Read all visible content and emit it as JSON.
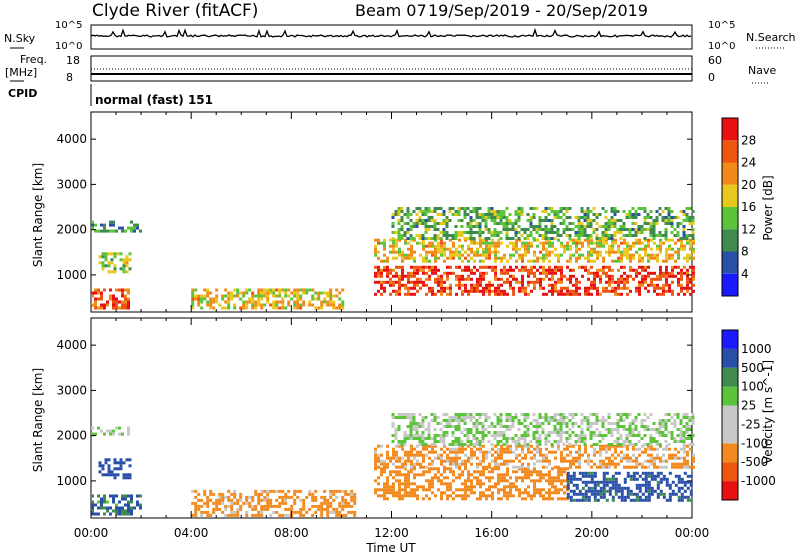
{
  "header": {
    "station": "Clyde River (fitACF)",
    "beam": "Beam 07",
    "dates": "19/Sep/2019 - 20/Sep/2019"
  },
  "tracks": {
    "nsky_label": "N.Sky",
    "nsky_ticks": [
      "10^5",
      "10^0"
    ],
    "nsearch_label": "N.Search",
    "nsearch_ticks": [
      "10^5",
      "10^0"
    ],
    "freq_label_1": "Freq.",
    "freq_label_2": "[MHz]",
    "freq_ticks": [
      "18",
      "8"
    ],
    "nave_label": "Nave",
    "nave_ticks": [
      "60",
      "0"
    ],
    "cpid_label": "CPID",
    "cpid_text": "normal (fast) 151"
  },
  "colors": {
    "power_scale": [
      "#1a1aff",
      "#2a4fa8",
      "#3f8a4f",
      "#5bc43a",
      "#e8c81c",
      "#f08a18",
      "#ee5510",
      "#e81010"
    ],
    "velocity_scale": [
      "#e81010",
      "#ee5510",
      "#f28a20",
      "#c8c8c8",
      "#c8c8c8",
      "#5bc43a",
      "#3f8a4f",
      "#2a4fa8",
      "#1a1aff"
    ]
  },
  "chart_data": [
    {
      "type": "heatmap",
      "title": "",
      "ylabel": "Slant Range [km]",
      "yticks": [
        "1000",
        "2000",
        "3000",
        "4000"
      ],
      "ylim": [
        180,
        4600
      ],
      "colorbar_label": "Power [dB]",
      "colorbar_ticks": [
        "4",
        "8",
        "12",
        "16",
        "20",
        "24",
        "28"
      ],
      "colorbar_range": [
        0,
        30
      ],
      "regions": [
        {
          "t": [
            0.0,
            1.5
          ],
          "r": [
            300,
            700
          ],
          "value": 24
        },
        {
          "t": [
            0.3,
            1.6
          ],
          "r": [
            1100,
            1500
          ],
          "value": 14
        },
        {
          "t": [
            0.0,
            2.0
          ],
          "r": [
            2000,
            2200
          ],
          "value": 10
        },
        {
          "t": [
            4.0,
            10.0
          ],
          "r": [
            250,
            700
          ],
          "value": 18
        },
        {
          "t": [
            11.3,
            24.0
          ],
          "r": [
            600,
            1200
          ],
          "value": 26
        },
        {
          "t": [
            11.3,
            24.0
          ],
          "r": [
            1300,
            1800
          ],
          "value": 18
        },
        {
          "t": [
            12.0,
            24.0
          ],
          "r": [
            1800,
            2500
          ],
          "value": 12
        }
      ]
    },
    {
      "type": "heatmap",
      "title": "",
      "ylabel": "Slant Range [km]",
      "xlabel": "Time UT",
      "x": [
        "00:00",
        "04:00",
        "08:00",
        "12:00",
        "16:00",
        "20:00",
        "00:00"
      ],
      "yticks": [
        "1000",
        "2000",
        "3000",
        "4000"
      ],
      "ylim": [
        180,
        4600
      ],
      "colorbar_label": "Velocity [m s^-1]",
      "colorbar_ticks": [
        "-1000",
        "-500",
        "-100",
        "-25",
        "25",
        "100",
        "500",
        "1000"
      ],
      "regions": [
        {
          "t": [
            0.0,
            2.0
          ],
          "r": [
            250,
            700
          ],
          "value": 100
        },
        {
          "t": [
            0.3,
            1.6
          ],
          "r": [
            1100,
            1500
          ],
          "value": 300
        },
        {
          "t": [
            0.0,
            1.5
          ],
          "r": [
            2050,
            2200
          ],
          "value": 0
        },
        {
          "t": [
            4.0,
            10.5
          ],
          "r": [
            250,
            800
          ],
          "value": -200
        },
        {
          "t": [
            11.3,
            19.0
          ],
          "r": [
            600,
            1300
          ],
          "value": -300
        },
        {
          "t": [
            19.0,
            24.0
          ],
          "r": [
            600,
            1200
          ],
          "value": 200
        },
        {
          "t": [
            11.3,
            24.0
          ],
          "r": [
            1300,
            1800
          ],
          "value": -150
        },
        {
          "t": [
            12.0,
            24.0
          ],
          "r": [
            1800,
            2500
          ],
          "value": 0
        }
      ]
    }
  ]
}
